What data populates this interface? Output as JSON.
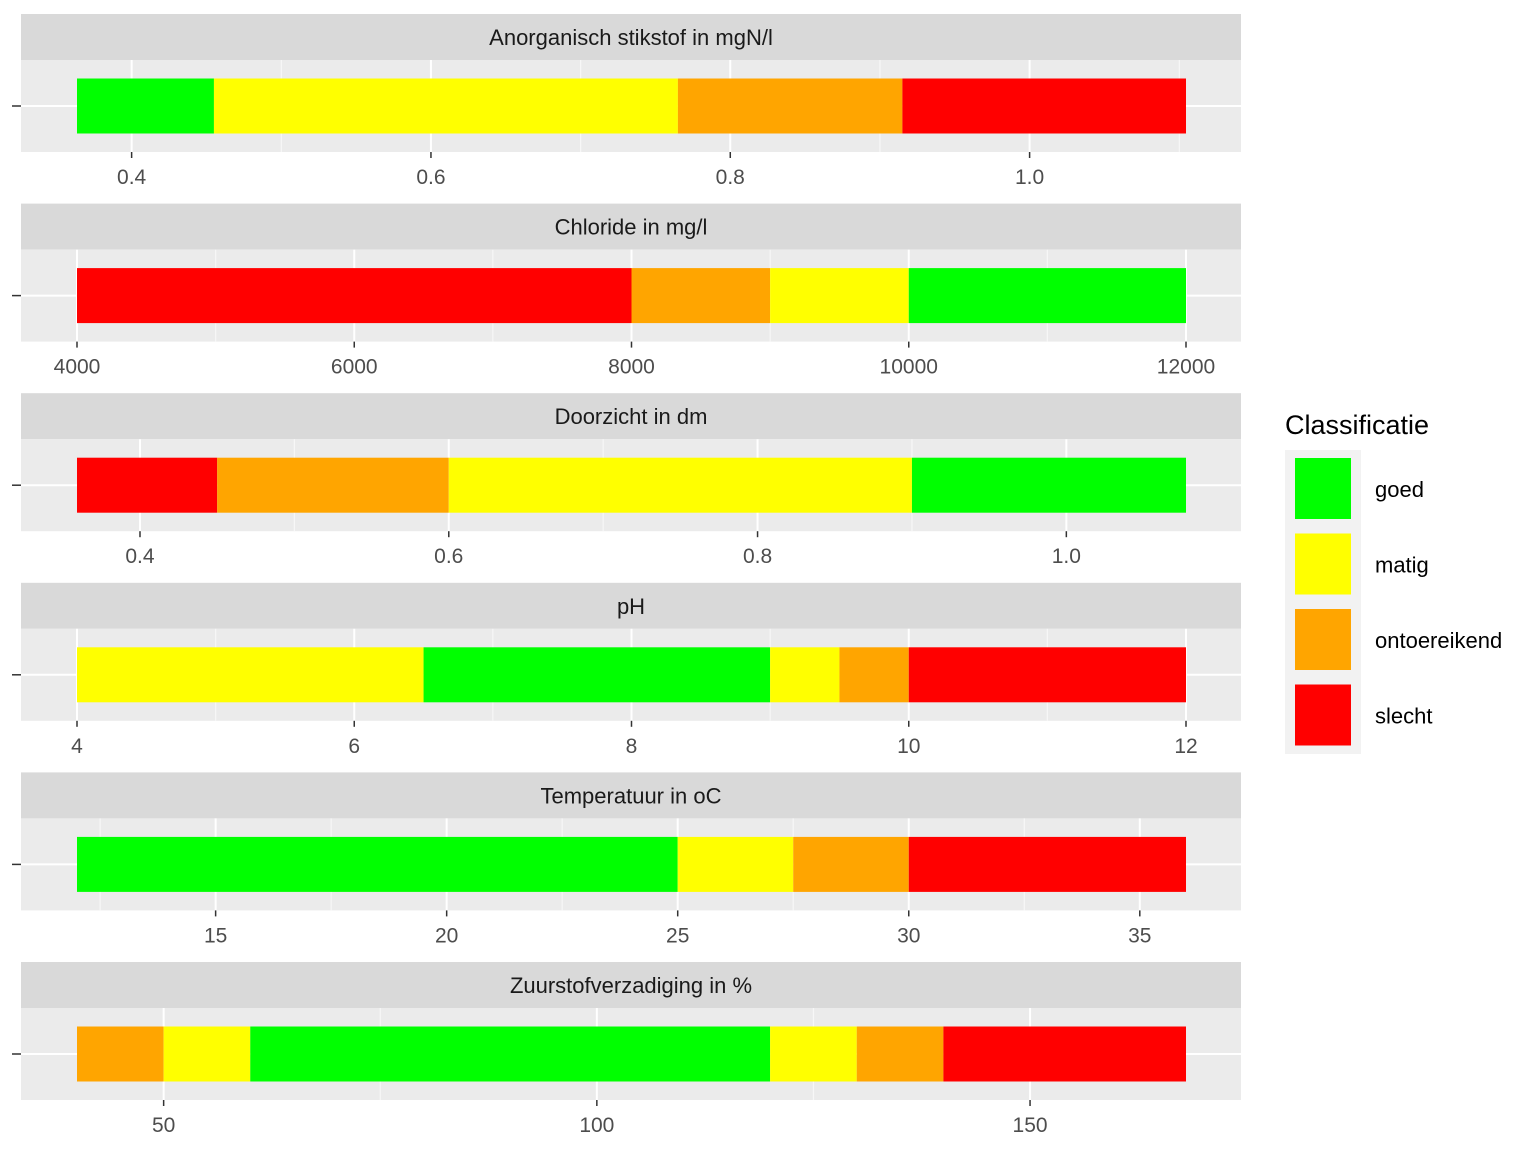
{
  "classes": [
    {
      "key": "goed",
      "label": "goed",
      "color": "#00FF00"
    },
    {
      "key": "matig",
      "label": "matig",
      "color": "#FFFF00"
    },
    {
      "key": "ontoereikend",
      "label": "ontoereikend",
      "color": "#FFA500"
    },
    {
      "key": "slecht",
      "label": "slecht",
      "color": "#FF0000"
    }
  ],
  "legend": {
    "title": "Classificatie",
    "position": "right"
  },
  "chart_data": [
    {
      "type": "bar",
      "orientation": "horizontal-stacked-ranges",
      "title": "Anorganisch stikstof in mgN/l",
      "xlim": [
        0.3635,
        1.1045
      ],
      "ticks": [
        0.4,
        0.6,
        0.8,
        1.0
      ],
      "tick_labels": [
        "0.4",
        "0.6",
        "0.8",
        "1.0"
      ],
      "segments": [
        {
          "from": 0.3635,
          "to": 0.455,
          "class": "goed"
        },
        {
          "from": 0.455,
          "to": 0.765,
          "class": "matig"
        },
        {
          "from": 0.765,
          "to": 0.915,
          "class": "ontoereikend"
        },
        {
          "from": 0.915,
          "to": 1.1045,
          "class": "slecht"
        }
      ]
    },
    {
      "type": "bar",
      "orientation": "horizontal-stacked-ranges",
      "title": "Chloride in mg/l",
      "xlim": [
        4000,
        12000
      ],
      "ticks": [
        4000,
        6000,
        8000,
        10000,
        12000
      ],
      "tick_labels": [
        "4000",
        "6000",
        "8000",
        "10000",
        "12000"
      ],
      "segments": [
        {
          "from": 4000,
          "to": 8000,
          "class": "slecht"
        },
        {
          "from": 8000,
          "to": 9000,
          "class": "ontoereikend"
        },
        {
          "from": 9000,
          "to": 10000,
          "class": "matig"
        },
        {
          "from": 10000,
          "to": 12000,
          "class": "goed"
        }
      ]
    },
    {
      "type": "bar",
      "orientation": "horizontal-stacked-ranges",
      "title": "Doorzicht in dm",
      "xlim": [
        0.3592,
        1.0775
      ],
      "ticks": [
        0.4,
        0.6,
        0.8,
        1.0
      ],
      "tick_labels": [
        "0.4",
        "0.6",
        "0.8",
        "1.0"
      ],
      "segments": [
        {
          "from": 0.3592,
          "to": 0.45,
          "class": "slecht"
        },
        {
          "from": 0.45,
          "to": 0.6,
          "class": "ontoereikend"
        },
        {
          "from": 0.6,
          "to": 0.9,
          "class": "matig"
        },
        {
          "from": 0.9,
          "to": 1.0775,
          "class": "goed"
        }
      ]
    },
    {
      "type": "bar",
      "orientation": "horizontal-stacked-ranges",
      "title": "pH",
      "xlim": [
        4,
        12
      ],
      "ticks": [
        4,
        6,
        8,
        10,
        12
      ],
      "tick_labels": [
        "4",
        "6",
        "8",
        "10",
        "12"
      ],
      "segments": [
        {
          "from": 4,
          "to": 6.5,
          "class": "matig"
        },
        {
          "from": 6.5,
          "to": 9,
          "class": "goed"
        },
        {
          "from": 9,
          "to": 9.5,
          "class": "matig"
        },
        {
          "from": 9.5,
          "to": 10,
          "class": "ontoereikend"
        },
        {
          "from": 10,
          "to": 12,
          "class": "slecht"
        }
      ]
    },
    {
      "type": "bar",
      "orientation": "horizontal-stacked-ranges",
      "title": "Temperatuur in oC",
      "xlim": [
        12,
        36
      ],
      "ticks": [
        15,
        20,
        25,
        30,
        35
      ],
      "tick_labels": [
        "15",
        "20",
        "25",
        "30",
        "35"
      ],
      "segments": [
        {
          "from": 12,
          "to": 25,
          "class": "goed"
        },
        {
          "from": 25,
          "to": 27.5,
          "class": "matig"
        },
        {
          "from": 27.5,
          "to": 30,
          "class": "ontoereikend"
        },
        {
          "from": 30,
          "to": 36,
          "class": "slecht"
        }
      ]
    },
    {
      "type": "bar",
      "orientation": "horizontal-stacked-ranges",
      "title": "Zuurstofverzadiging in %",
      "xlim": [
        40,
        168
      ],
      "ticks": [
        50,
        100,
        150
      ],
      "tick_labels": [
        "50",
        "100",
        "150"
      ],
      "segments": [
        {
          "from": 40,
          "to": 50,
          "class": "ontoereikend"
        },
        {
          "from": 50,
          "to": 60,
          "class": "matig"
        },
        {
          "from": 60,
          "to": 120,
          "class": "goed"
        },
        {
          "from": 120,
          "to": 130,
          "class": "matig"
        },
        {
          "from": 130,
          "to": 140,
          "class": "ontoereikend"
        },
        {
          "from": 140,
          "to": 168,
          "class": "slecht"
        }
      ]
    }
  ]
}
